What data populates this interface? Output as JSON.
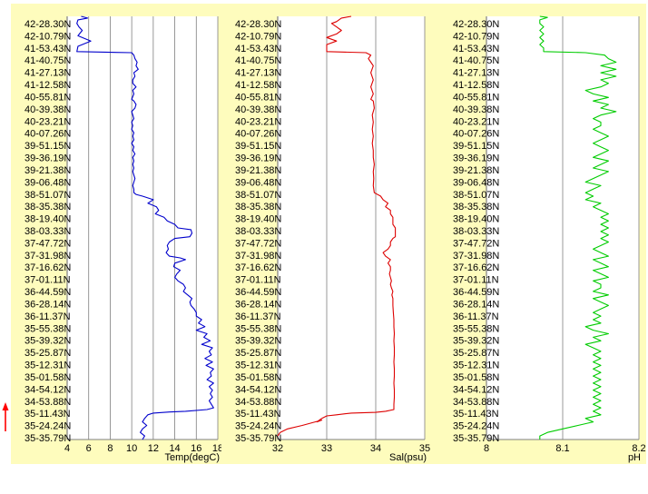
{
  "chart_data": [
    {
      "type": "line",
      "xlabel": "Temp(degC)",
      "xlim": [
        4,
        18
      ],
      "xticks": [
        4,
        6,
        8,
        10,
        12,
        14,
        16,
        18
      ],
      "color": "#0000cc",
      "points": [
        [
          5.3,
          0.0
        ],
        [
          5.9,
          0.5
        ],
        [
          5.0,
          1.0
        ],
        [
          4.9,
          2.0
        ],
        [
          5.1,
          3.0
        ],
        [
          5.4,
          4.0
        ],
        [
          5.0,
          5.5
        ],
        [
          6.2,
          7.0
        ],
        [
          5.0,
          8.5
        ],
        [
          4.9,
          10.0
        ],
        [
          10.0,
          10.3
        ],
        [
          10.2,
          11.0
        ],
        [
          10.3,
          12.0
        ],
        [
          10.5,
          13.0
        ],
        [
          10.4,
          14.0
        ],
        [
          10.6,
          15.0
        ],
        [
          10.2,
          16.0
        ],
        [
          10.3,
          17.0
        ],
        [
          10.1,
          18.0
        ],
        [
          10.1,
          19.0
        ],
        [
          10.4,
          20.0
        ],
        [
          10.1,
          21.0
        ],
        [
          10.2,
          22.0
        ],
        [
          10.0,
          23.5
        ],
        [
          10.2,
          24.0
        ],
        [
          10.4,
          25.0
        ],
        [
          10.3,
          26.0
        ],
        [
          10.0,
          27.0
        ],
        [
          10.1,
          28.0
        ],
        [
          10.2,
          29.0
        ],
        [
          10.0,
          30.0
        ],
        [
          10.1,
          31.0
        ],
        [
          10.0,
          32.0
        ],
        [
          10.2,
          33.0
        ],
        [
          10.1,
          34.0
        ],
        [
          10.2,
          35.0
        ],
        [
          10.0,
          36.0
        ],
        [
          10.2,
          37.0
        ],
        [
          10.1,
          38.0
        ],
        [
          10.3,
          39.0
        ],
        [
          10.1,
          40.0
        ],
        [
          10.2,
          41.0
        ],
        [
          10.1,
          42.0
        ],
        [
          10.2,
          43.0
        ],
        [
          10.1,
          44.0
        ],
        [
          10.2,
          45.0
        ],
        [
          10.3,
          46.0
        ],
        [
          10.2,
          47.0
        ],
        [
          10.1,
          48.0
        ],
        [
          10.2,
          49.0
        ],
        [
          10.2,
          50.0
        ],
        [
          10.4,
          50.5
        ],
        [
          11.0,
          51.0
        ],
        [
          12.0,
          52.0
        ],
        [
          11.5,
          53.0
        ],
        [
          12.3,
          54.0
        ],
        [
          12.5,
          55.0
        ],
        [
          12.2,
          56.0
        ],
        [
          13.0,
          57.0
        ],
        [
          13.3,
          58.0
        ],
        [
          14.0,
          59.0
        ],
        [
          14.3,
          60.0
        ],
        [
          15.5,
          60.5
        ],
        [
          15.6,
          61.5
        ],
        [
          15.4,
          62.5
        ],
        [
          14.0,
          63.0
        ],
        [
          13.5,
          64.0
        ],
        [
          13.3,
          65.0
        ],
        [
          13.4,
          66.0
        ],
        [
          13.2,
          67.0
        ],
        [
          13.5,
          68.0
        ],
        [
          14.5,
          68.5
        ],
        [
          15.0,
          69.0
        ],
        [
          14.0,
          70.0
        ],
        [
          13.9,
          71.0
        ],
        [
          14.5,
          72.0
        ],
        [
          14.2,
          73.0
        ],
        [
          14.0,
          74.0
        ],
        [
          14.3,
          75.0
        ],
        [
          14.8,
          76.0
        ],
        [
          15.0,
          77.0
        ],
        [
          14.8,
          78.0
        ],
        [
          15.2,
          79.0
        ],
        [
          15.6,
          80.0
        ],
        [
          15.4,
          81.0
        ],
        [
          15.5,
          82.0
        ],
        [
          15.8,
          83.0
        ],
        [
          16.0,
          84.0
        ],
        [
          16.0,
          85.0
        ],
        [
          16.5,
          86.0
        ],
        [
          16.2,
          87.0
        ],
        [
          16.8,
          88.0
        ],
        [
          16.0,
          89.0
        ],
        [
          17.0,
          90.0
        ],
        [
          16.7,
          91.0
        ],
        [
          17.3,
          92.0
        ],
        [
          16.5,
          93.0
        ],
        [
          17.5,
          94.0
        ],
        [
          17.2,
          95.0
        ],
        [
          17.4,
          96.0
        ],
        [
          16.8,
          97.0
        ],
        [
          17.5,
          98.0
        ],
        [
          16.9,
          99.0
        ],
        [
          17.6,
          100.0
        ],
        [
          17.3,
          101.0
        ],
        [
          17.4,
          102.0
        ],
        [
          17.0,
          103.0
        ],
        [
          17.6,
          104.0
        ],
        [
          17.2,
          105.0
        ],
        [
          17.5,
          106.0
        ],
        [
          17.3,
          107.0
        ],
        [
          17.5,
          108.0
        ],
        [
          17.2,
          109.0
        ],
        [
          17.4,
          110.0
        ],
        [
          17.6,
          111.0
        ],
        [
          17.0,
          111.5
        ],
        [
          15.0,
          112.0
        ],
        [
          13.5,
          112.2
        ],
        [
          12.0,
          112.5
        ],
        [
          11.5,
          113.0
        ],
        [
          11.2,
          114.0
        ],
        [
          11.0,
          115.0
        ],
        [
          11.4,
          116.0
        ],
        [
          11.0,
          117.0
        ],
        [
          10.8,
          118.0
        ],
        [
          11.2,
          119.0
        ],
        [
          11.0,
          120.0
        ]
      ]
    },
    {
      "type": "line",
      "xlabel": "Sal(psu)",
      "xlim": [
        32,
        35
      ],
      "xticks": [
        32,
        33,
        34,
        35
      ],
      "color": "#dd0000",
      "points": [
        [
          33.5,
          0.0
        ],
        [
          33.3,
          0.5
        ],
        [
          33.2,
          1.5
        ],
        [
          33.1,
          2.0
        ],
        [
          33.2,
          3.0
        ],
        [
          33.3,
          4.0
        ],
        [
          33.2,
          5.0
        ],
        [
          33.0,
          6.0
        ],
        [
          33.2,
          7.0
        ],
        [
          33.0,
          8.0
        ],
        [
          33.0,
          10.0
        ],
        [
          33.8,
          10.3
        ],
        [
          33.9,
          11.0
        ],
        [
          33.85,
          12.0
        ],
        [
          33.9,
          13.0
        ],
        [
          33.95,
          14.0
        ],
        [
          33.9,
          16.0
        ],
        [
          33.95,
          18.0
        ],
        [
          33.9,
          20.0
        ],
        [
          33.95,
          22.0
        ],
        [
          33.9,
          23.5
        ],
        [
          33.95,
          24.0
        ],
        [
          33.97,
          26.0
        ],
        [
          33.93,
          28.0
        ],
        [
          33.95,
          30.0
        ],
        [
          33.93,
          32.0
        ],
        [
          33.95,
          34.0
        ],
        [
          33.93,
          36.0
        ],
        [
          33.95,
          38.0
        ],
        [
          33.95,
          40.0
        ],
        [
          33.97,
          42.0
        ],
        [
          33.95,
          44.0
        ],
        [
          33.96,
          46.0
        ],
        [
          33.95,
          48.0
        ],
        [
          33.97,
          50.0
        ],
        [
          34.1,
          51.0
        ],
        [
          34.15,
          52.0
        ],
        [
          34.25,
          53.0
        ],
        [
          34.2,
          54.0
        ],
        [
          34.3,
          55.0
        ],
        [
          34.3,
          56.0
        ],
        [
          34.35,
          57.0
        ],
        [
          34.35,
          58.0
        ],
        [
          34.35,
          59.0
        ],
        [
          34.4,
          60.0
        ],
        [
          34.4,
          60.5
        ],
        [
          34.4,
          62.5
        ],
        [
          34.35,
          63.0
        ],
        [
          34.3,
          64.0
        ],
        [
          34.3,
          65.0
        ],
        [
          34.25,
          66.0
        ],
        [
          34.15,
          67.0
        ],
        [
          34.2,
          68.0
        ],
        [
          34.3,
          69.0
        ],
        [
          34.25,
          70.0
        ],
        [
          34.3,
          71.0
        ],
        [
          34.3,
          72.0
        ],
        [
          34.28,
          73.0
        ],
        [
          34.3,
          74.0
        ],
        [
          34.32,
          75.0
        ],
        [
          34.3,
          76.0
        ],
        [
          34.32,
          77.0
        ],
        [
          34.35,
          78.0
        ],
        [
          34.33,
          79.0
        ],
        [
          34.35,
          80.0
        ],
        [
          34.35,
          82.0
        ],
        [
          34.36,
          84.0
        ],
        [
          34.37,
          86.0
        ],
        [
          34.37,
          88.0
        ],
        [
          34.38,
          90.0
        ],
        [
          34.37,
          92.0
        ],
        [
          34.38,
          94.0
        ],
        [
          34.38,
          96.0
        ],
        [
          34.37,
          98.0
        ],
        [
          34.38,
          100.0
        ],
        [
          34.38,
          102.0
        ],
        [
          34.37,
          104.0
        ],
        [
          34.38,
          106.0
        ],
        [
          34.38,
          108.0
        ],
        [
          34.37,
          110.0
        ],
        [
          34.37,
          111.5
        ],
        [
          34.2,
          112.0
        ],
        [
          34.0,
          112.3
        ],
        [
          33.5,
          112.5
        ],
        [
          33.2,
          113.0
        ],
        [
          33.0,
          113.3
        ],
        [
          32.9,
          114.0
        ],
        [
          32.8,
          115.0
        ],
        [
          32.9,
          114.5
        ],
        [
          32.5,
          116.0
        ],
        [
          32.2,
          117.0
        ],
        [
          32.05,
          118.0
        ],
        [
          32.0,
          119.0
        ]
      ]
    },
    {
      "type": "line",
      "xlabel": "pH",
      "xlim": [
        8,
        8.2
      ],
      "xticks": [
        8,
        8.1,
        8.2
      ],
      "color": "#00cc00",
      "points": [
        [
          8.07,
          0.0
        ],
        [
          8.08,
          0.3
        ],
        [
          8.07,
          1.0
        ],
        [
          8.07,
          2.0
        ],
        [
          8.075,
          3.0
        ],
        [
          8.07,
          4.0
        ],
        [
          8.075,
          5.0
        ],
        [
          8.07,
          6.0
        ],
        [
          8.075,
          7.0
        ],
        [
          8.07,
          8.0
        ],
        [
          8.075,
          9.0
        ],
        [
          8.075,
          10.0
        ],
        [
          8.13,
          10.3
        ],
        [
          8.155,
          11.0
        ],
        [
          8.16,
          12.0
        ],
        [
          8.17,
          13.0
        ],
        [
          8.15,
          14.0
        ],
        [
          8.17,
          15.0
        ],
        [
          8.15,
          16.0
        ],
        [
          8.17,
          17.0
        ],
        [
          8.15,
          18.0
        ],
        [
          8.16,
          19.0
        ],
        [
          8.15,
          20.0
        ],
        [
          8.13,
          21.0
        ],
        [
          8.14,
          22.0
        ],
        [
          8.16,
          23.0
        ],
        [
          8.14,
          24.0
        ],
        [
          8.16,
          25.0
        ],
        [
          8.15,
          26.0
        ],
        [
          8.17,
          27.0
        ],
        [
          8.15,
          28.0
        ],
        [
          8.14,
          29.0
        ],
        [
          8.15,
          30.0
        ],
        [
          8.15,
          31.0
        ],
        [
          8.14,
          32.0
        ],
        [
          8.15,
          33.0
        ],
        [
          8.16,
          34.0
        ],
        [
          8.15,
          35.0
        ],
        [
          8.14,
          36.0
        ],
        [
          8.15,
          37.0
        ],
        [
          8.16,
          38.0
        ],
        [
          8.15,
          39.0
        ],
        [
          8.14,
          40.0
        ],
        [
          8.16,
          41.0
        ],
        [
          8.15,
          42.0
        ],
        [
          8.14,
          43.0
        ],
        [
          8.16,
          44.0
        ],
        [
          8.15,
          45.0
        ],
        [
          8.14,
          46.0
        ],
        [
          8.13,
          47.0
        ],
        [
          8.15,
          48.0
        ],
        [
          8.14,
          49.0
        ],
        [
          8.13,
          50.0
        ],
        [
          8.14,
          51.0
        ],
        [
          8.13,
          52.0
        ],
        [
          8.15,
          53.0
        ],
        [
          8.14,
          54.0
        ],
        [
          8.15,
          55.0
        ],
        [
          8.16,
          56.0
        ],
        [
          8.15,
          57.0
        ],
        [
          8.16,
          58.0
        ],
        [
          8.15,
          59.0
        ],
        [
          8.16,
          60.0
        ],
        [
          8.15,
          61.0
        ],
        [
          8.16,
          62.0
        ],
        [
          8.15,
          63.0
        ],
        [
          8.16,
          64.0
        ],
        [
          8.15,
          65.0
        ],
        [
          8.14,
          66.0
        ],
        [
          8.15,
          67.0
        ],
        [
          8.16,
          68.0
        ],
        [
          8.14,
          69.0
        ],
        [
          8.15,
          70.0
        ],
        [
          8.16,
          71.0
        ],
        [
          8.14,
          72.0
        ],
        [
          8.15,
          73.0
        ],
        [
          8.16,
          74.0
        ],
        [
          8.14,
          75.0
        ],
        [
          8.15,
          76.0
        ],
        [
          8.15,
          77.0
        ],
        [
          8.14,
          78.0
        ],
        [
          8.16,
          79.0
        ],
        [
          8.14,
          80.0
        ],
        [
          8.15,
          81.0
        ],
        [
          8.16,
          82.0
        ],
        [
          8.15,
          83.0
        ],
        [
          8.14,
          84.0
        ],
        [
          8.15,
          85.0
        ],
        [
          8.14,
          86.0
        ],
        [
          8.15,
          87.0
        ],
        [
          8.13,
          88.0
        ],
        [
          8.14,
          89.0
        ],
        [
          8.16,
          90.0
        ],
        [
          8.14,
          91.0
        ],
        [
          8.15,
          92.0
        ],
        [
          8.13,
          93.0
        ],
        [
          8.14,
          94.0
        ],
        [
          8.15,
          95.0
        ],
        [
          8.14,
          96.0
        ],
        [
          8.15,
          97.0
        ],
        [
          8.14,
          98.0
        ],
        [
          8.15,
          99.0
        ],
        [
          8.14,
          100.0
        ],
        [
          8.15,
          101.0
        ],
        [
          8.14,
          102.0
        ],
        [
          8.15,
          103.0
        ],
        [
          8.14,
          104.0
        ],
        [
          8.15,
          105.0
        ],
        [
          8.14,
          106.0
        ],
        [
          8.15,
          107.0
        ],
        [
          8.14,
          108.0
        ],
        [
          8.15,
          109.0
        ],
        [
          8.14,
          110.0
        ],
        [
          8.15,
          111.0
        ],
        [
          8.14,
          112.0
        ],
        [
          8.15,
          113.0
        ],
        [
          8.13,
          114.0
        ],
        [
          8.14,
          115.0
        ],
        [
          8.12,
          116.0
        ],
        [
          8.1,
          117.0
        ],
        [
          8.08,
          118.0
        ],
        [
          8.07,
          119.0
        ],
        [
          8.07,
          120.0
        ]
      ]
    }
  ],
  "y_axis": {
    "labels": [
      "42-28.30N",
      "42-10.79N",
      "41-53.43N",
      "41-40.75N",
      "41-27.13N",
      "41-12.58N",
      "40-55.81N",
      "40-39.38N",
      "40-23.21N",
      "40-07.26N",
      "39-51.15N",
      "39-36.19N",
      "39-21.38N",
      "39-06.48N",
      "38-51.07N",
      "38-35.38N",
      "38-19.40N",
      "38-03.33N",
      "37-47.72N",
      "37-31.98N",
      "37-16.62N",
      "37-01.11N",
      "36-44.59N",
      "36-28.14N",
      "36-11.37N",
      "35-55.38N",
      "35-39.32N",
      "35-25.87N",
      "35-12.31N",
      "35-01.58N",
      "34-54.12N",
      "34-53.88N",
      "35-11.43N",
      "35-24.24N",
      "35-35.79N"
    ],
    "reversed": true
  },
  "colors": {
    "panel_background": "#fefcbd",
    "plot_background": "#ffffff",
    "gridline": "#7f7f7f",
    "arrow": "#ff0000"
  },
  "arrow": {
    "icon": "up-arrow-icon"
  }
}
